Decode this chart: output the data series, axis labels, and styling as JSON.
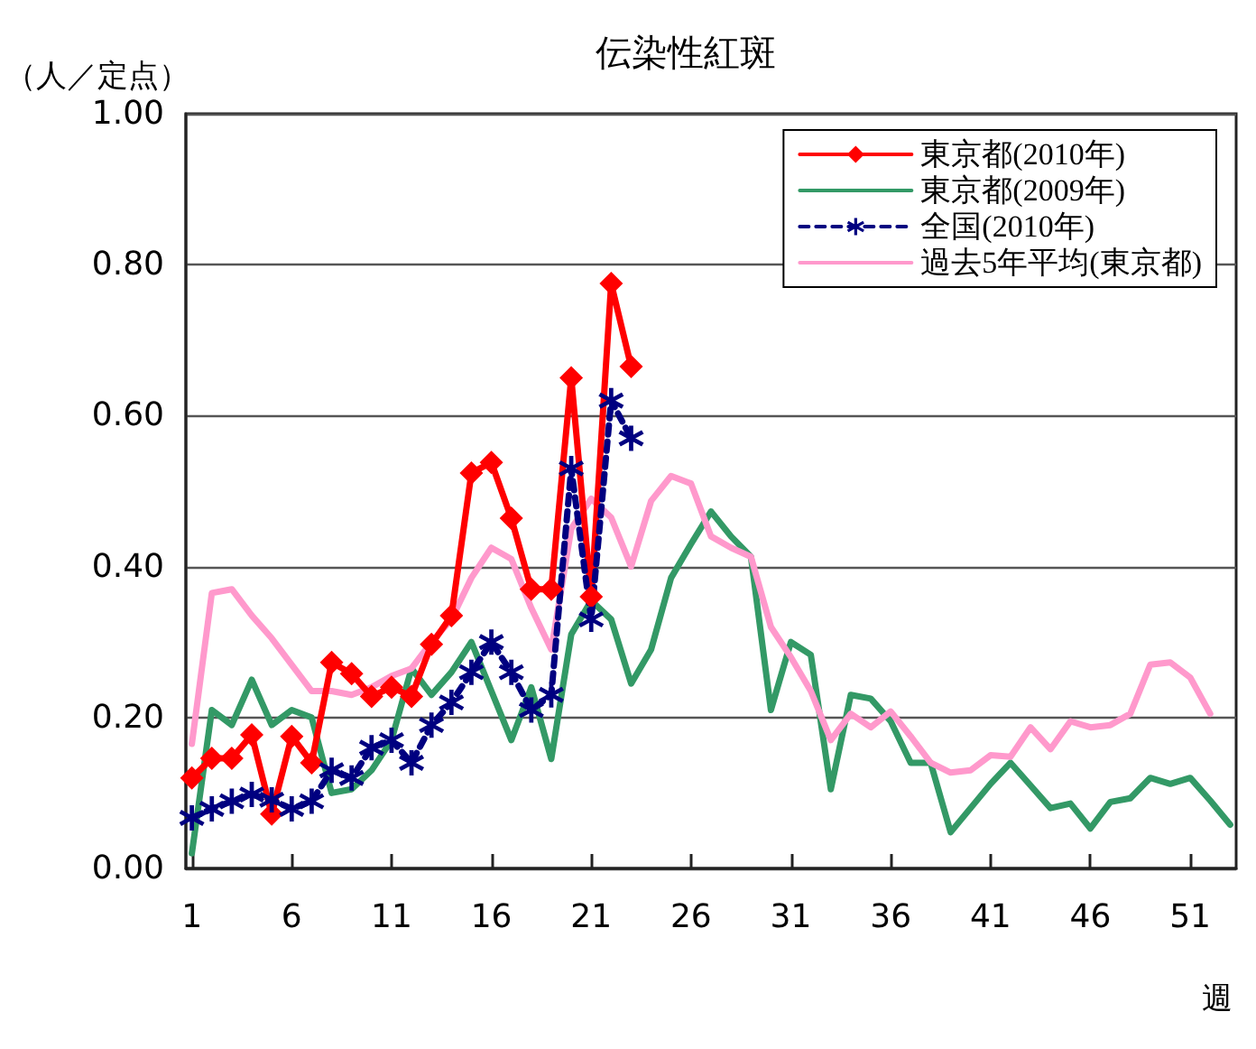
{
  "chart_data": {
    "type": "line",
    "title": "伝染性紅斑",
    "ylabel": "（人／定点）",
    "xlabel": "週",
    "x": [
      1,
      2,
      3,
      4,
      5,
      6,
      7,
      8,
      9,
      10,
      11,
      12,
      13,
      14,
      15,
      16,
      17,
      18,
      19,
      20,
      21,
      22,
      23,
      24,
      25,
      26,
      27,
      28,
      29,
      30,
      31,
      32,
      33,
      34,
      35,
      36,
      37,
      38,
      39,
      40,
      41,
      42,
      43,
      44,
      45,
      46,
      47,
      48,
      49,
      50,
      51,
      52,
      53
    ],
    "series": [
      {
        "name": "東京都(2010年)",
        "color": "#ff0000",
        "marker": "diamond",
        "line_style": "solid",
        "values": [
          0.12,
          0.146,
          0.146,
          0.177,
          0.072,
          0.175,
          0.14,
          0.273,
          0.258,
          0.228,
          0.24,
          0.228,
          0.297,
          0.335,
          0.524,
          0.538,
          0.464,
          0.37,
          0.37,
          0.65,
          0.36,
          0.775,
          0.665,
          null,
          null,
          null,
          null,
          null,
          null,
          null,
          null,
          null,
          null,
          null,
          null,
          null,
          null,
          null,
          null,
          null,
          null,
          null,
          null,
          null,
          null,
          null,
          null,
          null,
          null,
          null,
          null,
          null,
          null
        ]
      },
      {
        "name": "東京都(2009年)",
        "color": "#339966",
        "marker": "none",
        "line_style": "solid",
        "values": [
          0.02,
          0.21,
          0.19,
          0.25,
          0.19,
          0.21,
          0.2,
          0.1,
          0.105,
          0.13,
          0.17,
          0.265,
          0.23,
          0.26,
          0.3,
          0.235,
          0.17,
          0.24,
          0.145,
          0.31,
          0.355,
          0.33,
          0.245,
          0.29,
          0.385,
          0.43,
          0.473,
          0.44,
          0.413,
          0.21,
          0.3,
          0.283,
          0.105,
          0.23,
          0.225,
          0.195,
          0.14,
          0.14,
          0.048,
          0.08,
          0.112,
          0.14,
          0.11,
          0.08,
          0.086,
          0.053,
          0.088,
          0.093,
          0.12,
          0.112,
          0.12,
          0.09,
          0.058
        ]
      },
      {
        "name": "全国(2010年)",
        "color": "#000080",
        "marker": "cross",
        "line_style": "dashed",
        "values": [
          0.067,
          0.079,
          0.089,
          0.098,
          0.091,
          0.079,
          0.089,
          0.13,
          0.12,
          0.16,
          0.17,
          0.14,
          0.19,
          0.22,
          0.26,
          0.3,
          0.26,
          0.21,
          0.23,
          0.53,
          0.33,
          0.62,
          0.57,
          null,
          null,
          null,
          null,
          null,
          null,
          null,
          null,
          null,
          null,
          null,
          null,
          null,
          null,
          null,
          null,
          null,
          null,
          null,
          null,
          null,
          null,
          null,
          null,
          null,
          null,
          null,
          null,
          null,
          null
        ]
      },
      {
        "name": "過去5年平均(東京都)",
        "color": "#ff99cc",
        "marker": "none",
        "line_style": "solid",
        "values": [
          0.165,
          0.365,
          0.37,
          0.335,
          0.305,
          0.27,
          0.235,
          0.235,
          0.23,
          0.24,
          0.255,
          0.265,
          0.3,
          0.33,
          0.385,
          0.425,
          0.41,
          0.345,
          0.29,
          0.45,
          0.49,
          0.465,
          0.4,
          0.487,
          0.52,
          0.51,
          0.44,
          0.425,
          0.413,
          0.32,
          0.28,
          0.235,
          0.17,
          0.205,
          0.187,
          0.208,
          0.175,
          0.14,
          0.127,
          0.13,
          0.15,
          0.148,
          0.187,
          0.158,
          0.195,
          0.187,
          0.19,
          0.205,
          0.27,
          0.273,
          0.253,
          0.205,
          null
        ]
      }
    ],
    "xlim": [
      0.7,
      53.3
    ],
    "xticks": [
      1,
      6,
      11,
      16,
      21,
      26,
      31,
      36,
      41,
      46,
      51
    ],
    "ylim": [
      0,
      1
    ],
    "yticks": [
      {
        "value": 0,
        "label": "0.00"
      },
      {
        "value": 0.2,
        "label": "0.20"
      },
      {
        "value": 0.4,
        "label": "0.40"
      },
      {
        "value": 0.6,
        "label": "0.60"
      },
      {
        "value": 0.8,
        "label": "0.80"
      },
      {
        "value": 1,
        "label": "1.00"
      }
    ],
    "grid": "y",
    "legend": "top right"
  }
}
